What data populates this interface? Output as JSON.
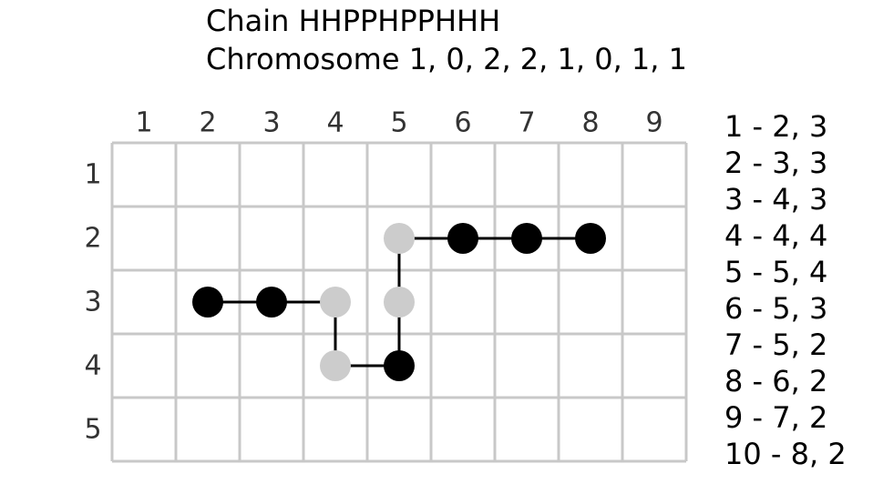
{
  "header": {
    "chain": "Chain HHPPHPPHHH",
    "chromosome": "Chromosome 1, 0, 2, 2, 1, 0, 1, 1"
  },
  "grid": {
    "columns": [
      "1",
      "2",
      "3",
      "4",
      "5",
      "6",
      "7",
      "8",
      "9"
    ],
    "rows": [
      "1",
      "2",
      "3",
      "4",
      "5"
    ]
  },
  "residues": [
    {
      "col": 2,
      "row": 3,
      "type": "H"
    },
    {
      "col": 3,
      "row": 3,
      "type": "H"
    },
    {
      "col": 4,
      "row": 3,
      "type": "P"
    },
    {
      "col": 4,
      "row": 4,
      "type": "P"
    },
    {
      "col": 5,
      "row": 4,
      "type": "H"
    },
    {
      "col": 5,
      "row": 3,
      "type": "P"
    },
    {
      "col": 5,
      "row": 2,
      "type": "P"
    },
    {
      "col": 6,
      "row": 2,
      "type": "H"
    },
    {
      "col": 7,
      "row": 2,
      "type": "H"
    },
    {
      "col": 8,
      "row": 2,
      "type": "H"
    }
  ],
  "coordinates": [
    "1 - 2, 3",
    "2 - 3, 3",
    "3 - 4, 3",
    "4 - 4, 4",
    "5 - 5, 4",
    "6 - 5, 3",
    "7 - 5, 2",
    "8 - 6, 2",
    "9 - 7, 2",
    "10 - 8, 2"
  ],
  "colors": {
    "hydrophobic": "#000000",
    "polar": "#cccccc",
    "gridline": "#c8c8c8",
    "bond": "#000000"
  }
}
